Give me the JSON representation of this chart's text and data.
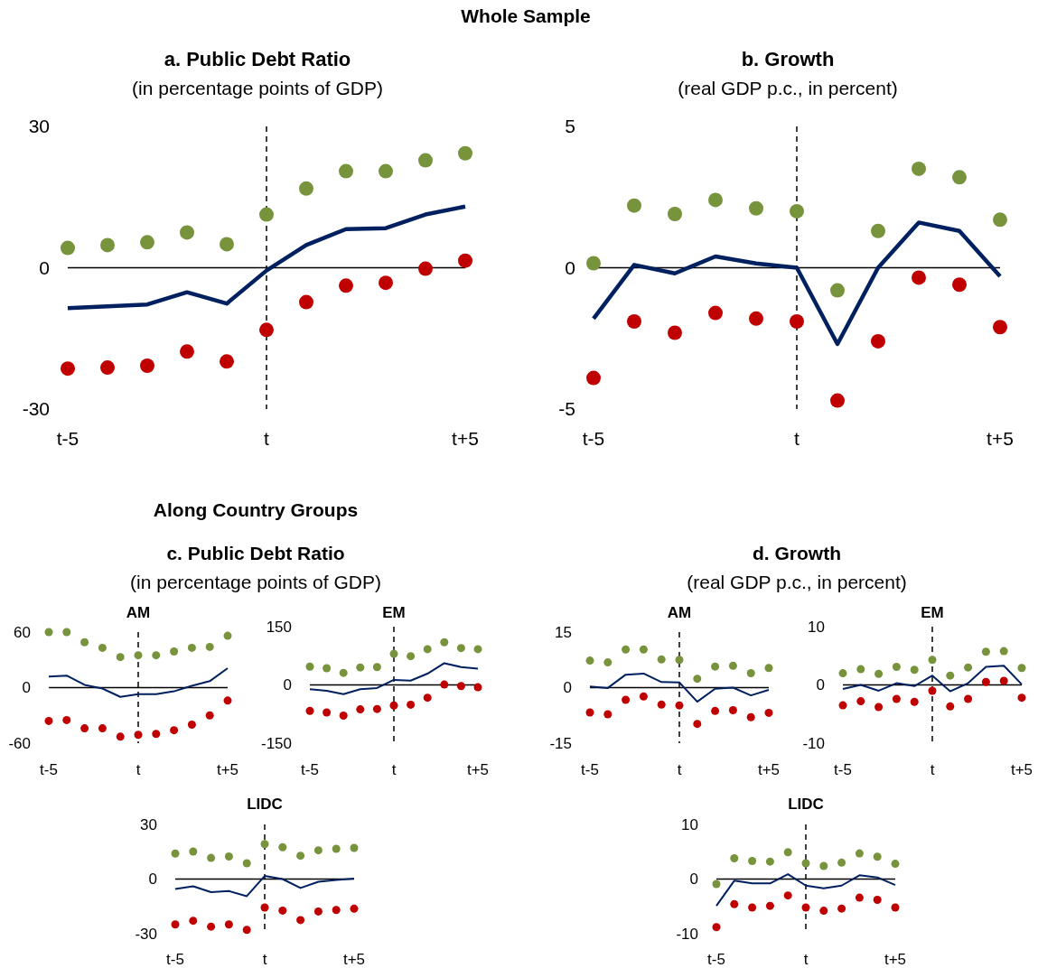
{
  "chart_data": [
    {
      "type": "line",
      "title": "a. Public Debt Ratio",
      "subtitle": "(in percentage points of GDP)",
      "annotations": [
        "Whole Sample"
      ],
      "categories": [
        "t-5",
        null,
        null,
        null,
        null,
        "t",
        null,
        null,
        null,
        null,
        "t+5"
      ],
      "ylim": [
        -30,
        30
      ],
      "yticks": [
        -30,
        0,
        30
      ],
      "line_style": "solid",
      "ref_lines": [
        {
          "axis": "x",
          "value": "t",
          "color": "#000000",
          "line_style": "dashed"
        },
        {
          "axis": "y",
          "value": 0,
          "color": "#000000",
          "line_style": "solid"
        }
      ],
      "series": [
        {
          "type": "scatter",
          "marker": "circle",
          "color": "#77933c",
          "values": [
            4.2,
            4.8,
            5.4,
            7.5,
            5,
            11.3,
            16.8,
            20.5,
            20.5,
            22.8,
            24.3
          ]
        },
        {
          "type": "line",
          "color": "#002060",
          "values": [
            -8.6,
            -8.2,
            -7.8,
            -5.2,
            -7.6,
            -0.6,
            4.8,
            8.2,
            8.4,
            11.3,
            13
          ]
        },
        {
          "type": "scatter",
          "marker": "circle",
          "color": "#c00000",
          "values": [
            -21.4,
            -21.2,
            -20.8,
            -17.8,
            -19.9,
            -13.2,
            -7.3,
            -3.8,
            -3.2,
            -0.2,
            1.5
          ]
        }
      ]
    },
    {
      "type": "line",
      "title": "b. Growth",
      "subtitle": "(real GDP p.c., in percent)",
      "categories": [
        "t-5",
        null,
        null,
        null,
        null,
        "t",
        null,
        null,
        null,
        null,
        "t+5"
      ],
      "ylim": [
        -5,
        5
      ],
      "yticks": [
        -5,
        0,
        5
      ],
      "line_style": "solid",
      "ref_lines": [
        {
          "axis": "x",
          "value": "t",
          "color": "#000000",
          "line_style": "dashed"
        },
        {
          "axis": "y",
          "value": 0,
          "color": "#000000",
          "line_style": "solid"
        }
      ],
      "series": [
        {
          "type": "scatter",
          "marker": "circle",
          "color": "#77933c",
          "values": [
            0.16,
            2.2,
            1.9,
            2.4,
            2.1,
            2.0,
            -0.8,
            1.3,
            3.5,
            3.2,
            1.7
          ]
        },
        {
          "type": "line",
          "color": "#002060",
          "values": [
            -1.8,
            0.1,
            -0.2,
            0.4,
            0.15,
            0.0,
            -2.7,
            0,
            1.6,
            1.3,
            -0.3
          ]
        },
        {
          "type": "scatter",
          "marker": "circle",
          "color": "#c00000",
          "values": [
            -3.9,
            -1.9,
            -2.3,
            -1.6,
            -1.8,
            -1.9,
            -4.7,
            -2.6,
            -0.35,
            -0.6,
            -2.1
          ]
        }
      ]
    },
    {
      "type": "line",
      "title": "AM",
      "annotations": [
        "Along Country Groups",
        "c. Public Debt Ratio",
        "(in percentage points of GDP)"
      ],
      "categories": [
        "t-5",
        null,
        null,
        null,
        null,
        "t",
        null,
        null,
        null,
        null,
        "t+5"
      ],
      "ylim": [
        -60,
        60
      ],
      "yticks": [
        -60,
        0,
        60
      ],
      "line_style": "solid",
      "ref_lines": [
        {
          "axis": "x",
          "value": "t",
          "color": "#000000",
          "line_style": "dashed"
        },
        {
          "axis": "y",
          "value": 0,
          "color": "#000000",
          "line_style": "solid"
        }
      ],
      "series": [
        {
          "type": "scatter",
          "marker": "circle",
          "color": "#77933c",
          "values": [
            60,
            60,
            49,
            43,
            33,
            35,
            35,
            39,
            43,
            44,
            56
          ]
        },
        {
          "type": "line",
          "color": "#002060",
          "values": [
            12,
            13,
            3,
            -1,
            -10,
            -7,
            -7,
            -4,
            2,
            7,
            21
          ]
        },
        {
          "type": "scatter",
          "marker": "circle",
          "color": "#c00000",
          "values": [
            -36,
            -35,
            -44,
            -44,
            -53,
            -51,
            -50,
            -46,
            -40,
            -30,
            -14
          ]
        }
      ]
    },
    {
      "type": "line",
      "title": "EM",
      "categories": [
        "t-5",
        null,
        null,
        null,
        null,
        "t",
        null,
        null,
        null,
        null,
        "t+5"
      ],
      "ylim": [
        -150,
        150
      ],
      "yticks": [
        -150,
        0,
        150
      ],
      "line_style": "solid",
      "ref_lines": [
        {
          "axis": "x",
          "value": "t",
          "color": "#000000",
          "line_style": "dashed"
        },
        {
          "axis": "y",
          "value": 0,
          "color": "#000000",
          "line_style": "solid"
        }
      ],
      "series": [
        {
          "type": "scatter",
          "marker": "circle",
          "color": "#77933c",
          "values": [
            47,
            43,
            31,
            45,
            46,
            80,
            74,
            92,
            110,
            95,
            92
          ]
        },
        {
          "type": "line",
          "color": "#002060",
          "values": [
            -11,
            -15,
            -24,
            -11,
            -8,
            13,
            11,
            29,
            56,
            46,
            42
          ]
        },
        {
          "type": "scatter",
          "marker": "circle",
          "color": "#c00000",
          "values": [
            -67,
            -71,
            -79,
            -63,
            -62,
            -53,
            -51,
            -33,
            1,
            -3,
            -6
          ]
        }
      ]
    },
    {
      "type": "line",
      "title": "AM",
      "annotations": [
        "d. Growth",
        "(real GDP p.c., in percent)"
      ],
      "categories": [
        "t-5",
        null,
        null,
        null,
        null,
        "t",
        null,
        null,
        null,
        null,
        "t+5"
      ],
      "ylim": [
        -15,
        15
      ],
      "yticks": [
        -15,
        0,
        15
      ],
      "line_style": "solid",
      "ref_lines": [
        {
          "axis": "x",
          "value": "t",
          "color": "#000000",
          "line_style": "dashed"
        },
        {
          "axis": "y",
          "value": 0,
          "color": "#000000",
          "line_style": "solid"
        }
      ],
      "series": [
        {
          "type": "scatter",
          "marker": "circle",
          "color": "#77933c",
          "values": [
            7.3,
            6.8,
            10.3,
            10.3,
            7.6,
            7.5,
            2.4,
            5.7,
            5.9,
            3.9,
            5.3
          ]
        },
        {
          "type": "line",
          "color": "#002060",
          "values": [
            0.3,
            -0.1,
            3.5,
            3.8,
            1.5,
            1.4,
            -3.8,
            -0.3,
            0,
            -2.1,
            -0.6
          ]
        },
        {
          "type": "scatter",
          "marker": "circle",
          "color": "#c00000",
          "values": [
            -6.7,
            -7.2,
            -3.3,
            -2.4,
            -4.6,
            -4.8,
            -9.8,
            -6.3,
            -6.1,
            -8,
            -6.8
          ]
        }
      ]
    },
    {
      "type": "line",
      "title": "EM",
      "categories": [
        "t-5",
        null,
        null,
        null,
        null,
        "t",
        null,
        null,
        null,
        null,
        "t+5"
      ],
      "ylim": [
        -10,
        10
      ],
      "yticks": [
        -10,
        0,
        10
      ],
      "line_style": "solid",
      "ref_lines": [
        {
          "axis": "x",
          "value": "t",
          "color": "#000000",
          "line_style": "dashed"
        },
        {
          "axis": "y",
          "value": 0,
          "color": "#000000",
          "line_style": "solid"
        }
      ],
      "series": [
        {
          "type": "scatter",
          "marker": "circle",
          "color": "#77933c",
          "values": [
            2.0,
            2.7,
            1.9,
            3.1,
            2.6,
            4.3,
            1.6,
            3.0,
            5.7,
            5.8,
            2.9
          ]
        },
        {
          "type": "line",
          "color": "#002060",
          "values": [
            -0.7,
            0,
            -1.0,
            0.3,
            -0.2,
            1.6,
            -1.1,
            0.3,
            3.1,
            3.3,
            0.1
          ]
        },
        {
          "type": "scatter",
          "marker": "circle",
          "color": "#c00000",
          "values": [
            -3.5,
            -2.8,
            -3.8,
            -2.4,
            -2.9,
            -1.0,
            -3.7,
            -2.4,
            0.5,
            0.7,
            -2.2
          ]
        }
      ]
    },
    {
      "type": "line",
      "title": "LIDC",
      "categories": [
        "t-5",
        null,
        null,
        null,
        null,
        "t",
        null,
        null,
        null,
        null,
        "t+5"
      ],
      "ylim": [
        -30,
        30
      ],
      "yticks": [
        -30,
        0,
        30
      ],
      "line_style": "solid",
      "ref_lines": [
        {
          "axis": "x",
          "value": "t",
          "color": "#000000",
          "line_style": "dashed"
        },
        {
          "axis": "y",
          "value": 0,
          "color": "#000000",
          "line_style": "solid"
        }
      ],
      "series": [
        {
          "type": "scatter",
          "marker": "circle",
          "color": "#77933c",
          "values": [
            14,
            15.1,
            11.6,
            12.4,
            8.7,
            19.2,
            17.5,
            12.8,
            15.8,
            16.6,
            17.1
          ]
        },
        {
          "type": "line",
          "color": "#002060",
          "values": [
            -5.5,
            -4,
            -7.2,
            -6.6,
            -9.4,
            1.7,
            0,
            -4.9,
            -1.5,
            -0.5,
            0.3
          ]
        },
        {
          "type": "scatter",
          "marker": "circle",
          "color": "#c00000",
          "values": [
            -24.9,
            -22.9,
            -26.1,
            -24.9,
            -27.9,
            -15.6,
            -17.3,
            -22.5,
            -17.8,
            -17,
            -16.3
          ]
        }
      ]
    },
    {
      "type": "line",
      "title": "LIDC",
      "categories": [
        "t-5",
        null,
        null,
        null,
        null,
        "t",
        null,
        null,
        null,
        null,
        "t+5"
      ],
      "ylim": [
        -10,
        10
      ],
      "yticks": [
        -10,
        0,
        10
      ],
      "line_style": "solid",
      "ref_lines": [
        {
          "axis": "x",
          "value": "t",
          "color": "#000000",
          "line_style": "dashed"
        },
        {
          "axis": "y",
          "value": 0,
          "color": "#000000",
          "line_style": "solid"
        }
      ],
      "series": [
        {
          "type": "scatter",
          "marker": "circle",
          "color": "#77933c",
          "values": [
            -0.9,
            3.8,
            3.3,
            3.2,
            4.9,
            2.9,
            2.4,
            3.0,
            4.7,
            4.1,
            2.8
          ]
        },
        {
          "type": "line",
          "color": "#002060",
          "values": [
            -4.9,
            -0.3,
            -0.8,
            -0.8,
            0.9,
            -1.2,
            -1.7,
            -1.2,
            0.7,
            0.3,
            -1.1
          ]
        },
        {
          "type": "scatter",
          "marker": "circle",
          "color": "#c00000",
          "values": [
            -8.8,
            -4.6,
            -5.2,
            -4.9,
            -3.0,
            -5.2,
            -5.8,
            -5.4,
            -3.4,
            -3.8,
            -5.2
          ]
        }
      ]
    }
  ]
}
